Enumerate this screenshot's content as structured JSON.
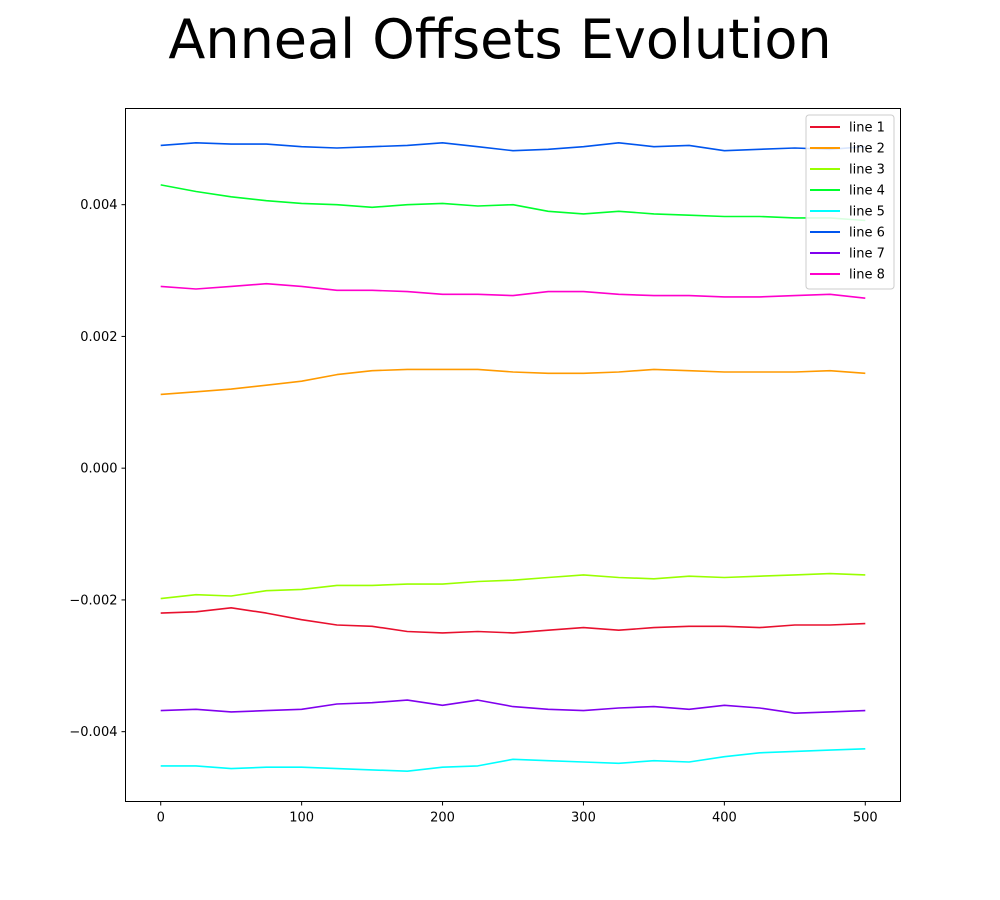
{
  "chart_data": {
    "type": "line",
    "title": "Anneal Offsets Evolution",
    "xlabel": "",
    "ylabel": "",
    "xlim": [
      -25,
      525
    ],
    "ylim": [
      -0.00506,
      0.00546
    ],
    "x_ticks": [
      0,
      100,
      200,
      300,
      400,
      500
    ],
    "x_tick_labels": [
      "0",
      "100",
      "200",
      "300",
      "400",
      "500"
    ],
    "y_ticks": [
      -0.004,
      -0.002,
      0.0,
      0.002,
      0.004
    ],
    "y_tick_labels": [
      "−0.004",
      "−0.002",
      "0.000",
      "0.002",
      "0.004"
    ],
    "grid": false,
    "legend_position": "top-right",
    "x": [
      0,
      25,
      50,
      75,
      100,
      125,
      150,
      175,
      200,
      225,
      250,
      275,
      300,
      325,
      350,
      375,
      400,
      425,
      450,
      475,
      500
    ],
    "series": [
      {
        "name": "line 1",
        "color": "#e8102e",
        "values": [
          -0.0022,
          -0.00218,
          -0.00212,
          -0.0022,
          -0.0023,
          -0.00238,
          -0.0024,
          -0.00248,
          -0.0025,
          -0.00248,
          -0.0025,
          -0.00246,
          -0.00242,
          -0.00246,
          -0.00242,
          -0.0024,
          -0.0024,
          -0.00242,
          -0.00238,
          -0.00238,
          -0.00236
        ]
      },
      {
        "name": "line 2",
        "color": "#ff9a00",
        "values": [
          0.00112,
          0.00116,
          0.0012,
          0.00126,
          0.00132,
          0.00142,
          0.00148,
          0.0015,
          0.0015,
          0.0015,
          0.00146,
          0.00144,
          0.00144,
          0.00146,
          0.0015,
          0.00148,
          0.00146,
          0.00146,
          0.00146,
          0.00148,
          0.00144
        ]
      },
      {
        "name": "line 3",
        "color": "#99ff00",
        "values": [
          -0.00198,
          -0.00192,
          -0.00194,
          -0.00186,
          -0.00184,
          -0.00178,
          -0.00178,
          -0.00176,
          -0.00176,
          -0.00172,
          -0.0017,
          -0.00166,
          -0.00162,
          -0.00166,
          -0.00168,
          -0.00164,
          -0.00166,
          -0.00164,
          -0.00162,
          -0.0016,
          -0.00162
        ]
      },
      {
        "name": "line 4",
        "color": "#00ff2e",
        "values": [
          0.0043,
          0.0042,
          0.00412,
          0.00406,
          0.00402,
          0.004,
          0.00396,
          0.004,
          0.00402,
          0.00398,
          0.004,
          0.0039,
          0.00386,
          0.0039,
          0.00386,
          0.00384,
          0.00382,
          0.00382,
          0.0038,
          0.0038,
          0.00376
        ]
      },
      {
        "name": "line 5",
        "color": "#00ffff",
        "values": [
          -0.00452,
          -0.00452,
          -0.00456,
          -0.00454,
          -0.00454,
          -0.00456,
          -0.00458,
          -0.0046,
          -0.00454,
          -0.00452,
          -0.00442,
          -0.00444,
          -0.00446,
          -0.00448,
          -0.00444,
          -0.00446,
          -0.00438,
          -0.00432,
          -0.0043,
          -0.00428,
          -0.00426
        ]
      },
      {
        "name": "line 6",
        "color": "#0055ee",
        "values": [
          0.0049,
          0.00494,
          0.00492,
          0.00492,
          0.00488,
          0.00486,
          0.00488,
          0.0049,
          0.00494,
          0.00488,
          0.00482,
          0.00484,
          0.00488,
          0.00494,
          0.00488,
          0.0049,
          0.00482,
          0.00484,
          0.00486,
          0.00484,
          0.00488
        ]
      },
      {
        "name": "line 7",
        "color": "#8000ee",
        "values": [
          -0.00368,
          -0.00366,
          -0.0037,
          -0.00368,
          -0.00366,
          -0.00358,
          -0.00356,
          -0.00352,
          -0.0036,
          -0.00352,
          -0.00362,
          -0.00366,
          -0.00368,
          -0.00364,
          -0.00362,
          -0.00366,
          -0.0036,
          -0.00364,
          -0.00372,
          -0.0037,
          -0.00368
        ]
      },
      {
        "name": "line 8",
        "color": "#ff00cc",
        "values": [
          0.00276,
          0.00272,
          0.00276,
          0.0028,
          0.00276,
          0.0027,
          0.0027,
          0.00268,
          0.00264,
          0.00264,
          0.00262,
          0.00268,
          0.00268,
          0.00264,
          0.00262,
          0.00262,
          0.0026,
          0.0026,
          0.00262,
          0.00264,
          0.00258
        ]
      }
    ]
  }
}
